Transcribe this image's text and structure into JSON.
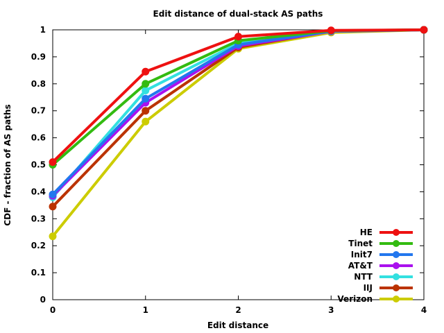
{
  "chart_data": {
    "type": "line",
    "title": "Edit distance of dual-stack AS paths",
    "xlabel": "Edit distance",
    "ylabel": "CDF - fraction of AS paths",
    "x": [
      0,
      1,
      2,
      3,
      4
    ],
    "xlim": [
      0,
      4
    ],
    "ylim": [
      0,
      1
    ],
    "xticks": [
      "0",
      "1",
      "2",
      "3",
      "4"
    ],
    "yticks": [
      "0",
      "0.1",
      "0.2",
      "0.3",
      "0.4",
      "0.5",
      "0.6",
      "0.7",
      "0.8",
      "0.9",
      "1"
    ],
    "grid": false,
    "legend_position": "bottom-right",
    "series": [
      {
        "name": "HE",
        "color": "#ee1111",
        "values": [
          0.51,
          0.845,
          0.975,
          0.998,
          1.0
        ]
      },
      {
        "name": "Tinet",
        "color": "#33bb11",
        "values": [
          0.5,
          0.8,
          0.96,
          0.997,
          1.0
        ]
      },
      {
        "name": "Init7",
        "color": "#2277ee",
        "values": [
          0.39,
          0.745,
          0.945,
          0.995,
          1.0
        ]
      },
      {
        "name": "AT&T",
        "color": "#aa11ee",
        "values": [
          0.385,
          0.73,
          0.94,
          0.994,
          1.0
        ]
      },
      {
        "name": "NTT",
        "color": "#33e0e0",
        "values": [
          0.38,
          0.775,
          0.95,
          0.995,
          1.0
        ]
      },
      {
        "name": "IIJ",
        "color": "#bb3300",
        "values": [
          0.345,
          0.7,
          0.935,
          0.996,
          1.0
        ]
      },
      {
        "name": "Verizon",
        "color": "#cccc00",
        "values": [
          0.235,
          0.66,
          0.93,
          0.99,
          1.0
        ]
      }
    ]
  }
}
